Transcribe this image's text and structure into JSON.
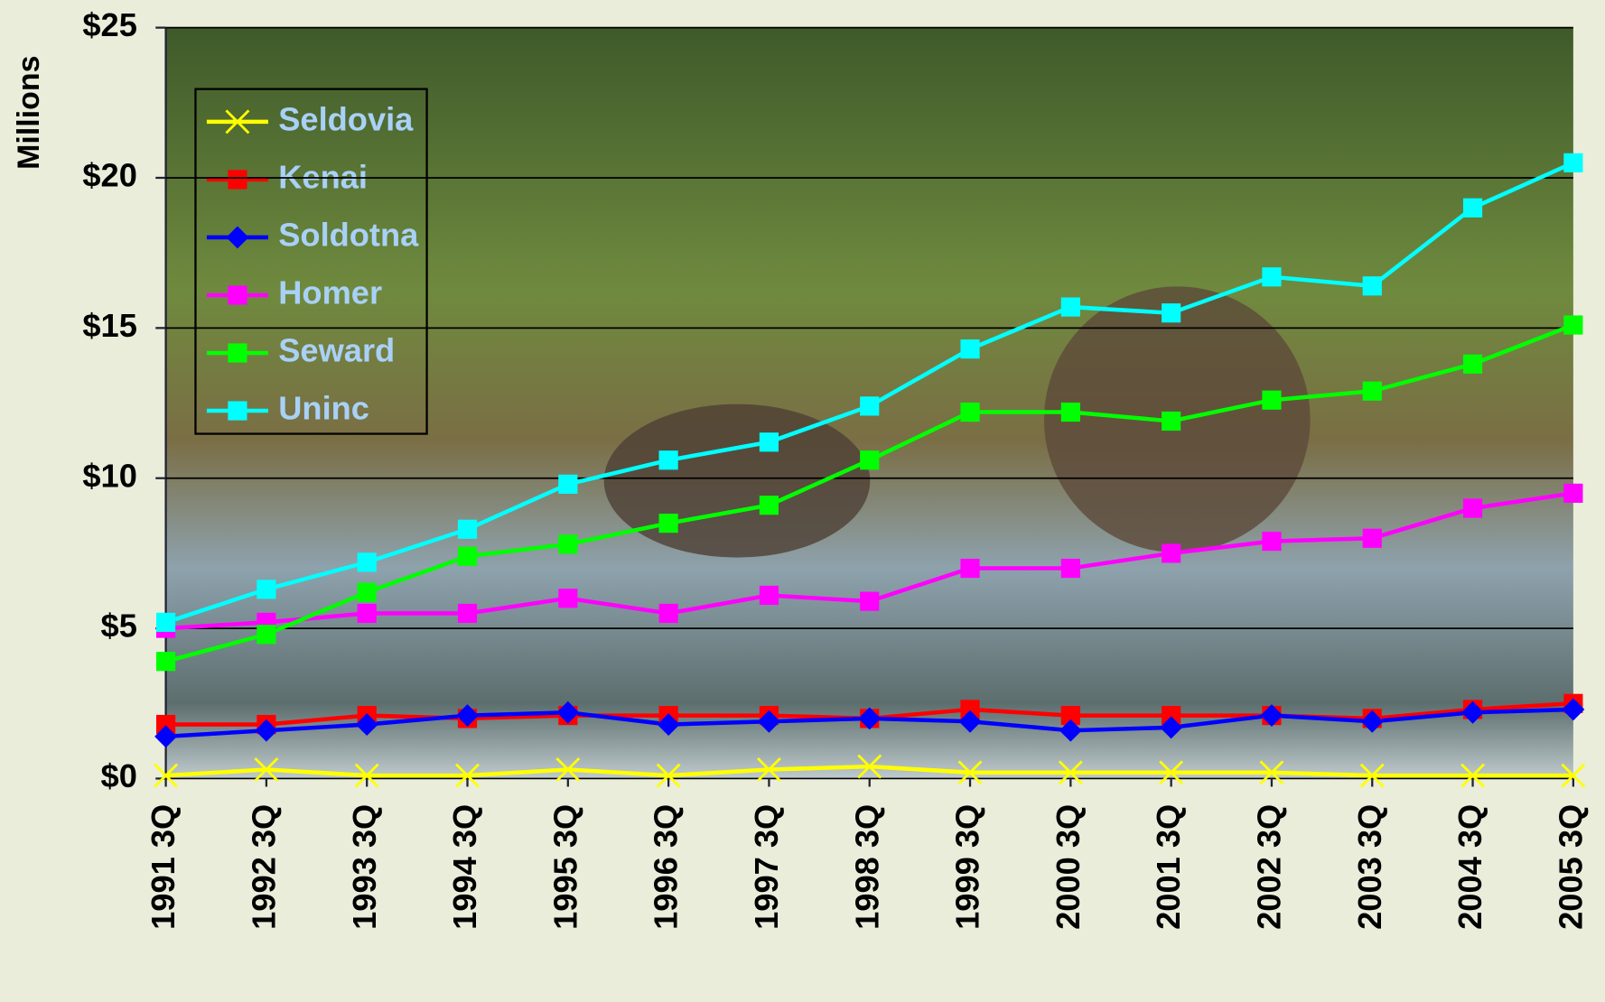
{
  "chart_data": {
    "type": "line",
    "y_label": "Millions",
    "categories": [
      "1991 3Q",
      "1992 3Q",
      "1993 3Q",
      "1994 3Q",
      "1995 3Q",
      "1996 3Q",
      "1997 3Q",
      "1998 3Q",
      "1999 3Q",
      "2000 3Q",
      "2001 3Q",
      "2002 3Q",
      "2003 3Q",
      "2004 3Q",
      "2005 3Q"
    ],
    "ylim": [
      0,
      25
    ],
    "yticks": [
      {
        "value": 0,
        "label": "$0"
      },
      {
        "value": 5,
        "label": "$5"
      },
      {
        "value": 10,
        "label": "$10"
      },
      {
        "value": 15,
        "label": "$15"
      },
      {
        "value": 20,
        "label": "$20"
      },
      {
        "value": 25,
        "label": "$25"
      }
    ],
    "grid": true,
    "legend": "upper-left",
    "series": [
      {
        "name": "Seldovia",
        "color": "#ffff00",
        "marker": "x",
        "values": [
          0.1,
          0.3,
          0.1,
          0.1,
          0.3,
          0.1,
          0.3,
          0.4,
          0.2,
          0.2,
          0.2,
          0.2,
          0.1,
          0.1,
          0.1
        ]
      },
      {
        "name": "Kenai",
        "color": "#ff0000",
        "marker": "square",
        "values": [
          1.8,
          1.8,
          2.1,
          2.0,
          2.1,
          2.1,
          2.1,
          2.0,
          2.3,
          2.1,
          2.1,
          2.1,
          2.0,
          2.3,
          2.5
        ]
      },
      {
        "name": "Soldotna",
        "color": "#0000ff",
        "marker": "diamond",
        "values": [
          1.4,
          1.6,
          1.8,
          2.1,
          2.2,
          1.8,
          1.9,
          2.0,
          1.9,
          1.6,
          1.7,
          2.1,
          1.9,
          2.2,
          2.3
        ]
      },
      {
        "name": "Homer",
        "color": "#ff00ff",
        "marker": "square",
        "values": [
          5.0,
          5.2,
          5.5,
          5.5,
          6.0,
          5.5,
          6.1,
          5.9,
          7.0,
          7.0,
          7.5,
          7.9,
          8.0,
          9.0,
          9.5
        ]
      },
      {
        "name": "Seward",
        "color": "#00ff00",
        "marker": "square",
        "values": [
          3.9,
          4.8,
          6.2,
          7.4,
          7.8,
          8.5,
          9.1,
          10.6,
          12.2,
          12.2,
          11.9,
          12.6,
          12.9,
          13.8,
          15.1
        ]
      },
      {
        "name": "Uninc",
        "color": "#00ffff",
        "marker": "square",
        "values": [
          5.2,
          6.3,
          7.2,
          8.3,
          9.8,
          10.6,
          11.2,
          12.4,
          14.3,
          15.7,
          15.5,
          16.7,
          16.4,
          19.0,
          20.5
        ]
      }
    ]
  }
}
